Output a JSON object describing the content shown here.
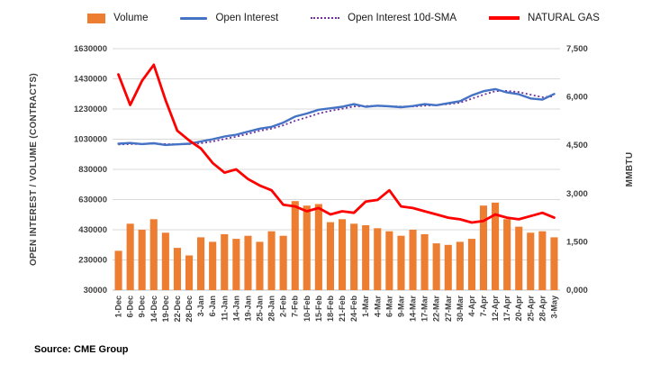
{
  "legend": [
    {
      "label": "Volume",
      "marker": "bar",
      "color": "#ED7D31"
    },
    {
      "label": "Open Interest",
      "marker": "line",
      "color": "#4472C4"
    },
    {
      "label": "Open Interest 10d-SMA",
      "marker": "dotted-line",
      "color": "#7030A0"
    },
    {
      "label": "NATURAL GAS",
      "marker": "thick-line",
      "color": "#FF0000"
    }
  ],
  "axes": {
    "left_title": "OPEN INTEREST / VOLUME (CONTRACTS)",
    "right_title": "MMBTU",
    "left_range": [
      30000,
      1630000
    ],
    "right_range": [
      0,
      7500
    ],
    "left_ticks": {
      "labels": [
        "1630000",
        "1430000",
        "1230000",
        "1030000",
        "830000",
        "630000",
        "430000",
        "230000",
        "30000"
      ],
      "values": [
        1630000,
        1430000,
        1230000,
        1030000,
        830000,
        630000,
        430000,
        230000,
        30000
      ]
    },
    "right_ticks": {
      "labels": [
        "7,500",
        "6,000",
        "4,500",
        "3,000",
        "1,500",
        "0,000"
      ],
      "values": [
        7500,
        6000,
        4500,
        3000,
        1500,
        0
      ]
    }
  },
  "source": "Source: CME Group",
  "chart_data": {
    "type": "combo",
    "title": "",
    "legend_position": "top",
    "grid": "horizontal",
    "xlabel": "",
    "ylabel_left": "OPEN INTEREST / VOLUME (CONTRACTS)",
    "ylabel_right": "MMBTU",
    "ylim_left": [
      30000,
      1630000
    ],
    "ylim_right": [
      0,
      7500
    ],
    "categories": [
      "1-Dec",
      "6-Dec",
      "9-Dec",
      "14-Dec",
      "19-Dec",
      "22-Dec",
      "28-Dec",
      "3-Jan",
      "6-Jan",
      "11-Jan",
      "14-Jan",
      "19-Jan",
      "25-Jan",
      "28-Jan",
      "2-Feb",
      "7-Feb",
      "10-Feb",
      "15-Feb",
      "18-Feb",
      "21-Feb",
      "24-Feb",
      "1-Mar",
      "4-Mar",
      "6-Mar",
      "9-Mar",
      "14-Mar",
      "17-Mar",
      "22-Mar",
      "27-Mar",
      "30-Mar",
      "4-Apr",
      "7-Apr",
      "12-Apr",
      "17-Apr",
      "20-Apr",
      "25-Apr",
      "28-Apr",
      "3-May"
    ],
    "series": [
      {
        "name": "Volume",
        "type": "bar",
        "axis": "left",
        "color": "#ED7D31",
        "values": [
          290000,
          470000,
          430000,
          500000,
          410000,
          310000,
          260000,
          380000,
          350000,
          400000,
          370000,
          390000,
          350000,
          420000,
          390000,
          620000,
          590000,
          600000,
          480000,
          500000,
          470000,
          460000,
          440000,
          420000,
          390000,
          430000,
          400000,
          340000,
          330000,
          350000,
          370000,
          590000,
          610000,
          500000,
          450000,
          410000,
          420000,
          380000
        ]
      },
      {
        "name": "Open Interest",
        "type": "line",
        "axis": "left",
        "color": "#4472C4",
        "values": [
          1000000,
          1005000,
          998000,
          1003000,
          992000,
          996000,
          1000000,
          1015000,
          1030000,
          1048000,
          1060000,
          1080000,
          1100000,
          1112000,
          1140000,
          1180000,
          1200000,
          1225000,
          1235000,
          1245000,
          1262000,
          1245000,
          1252000,
          1248000,
          1242000,
          1250000,
          1262000,
          1255000,
          1268000,
          1282000,
          1320000,
          1348000,
          1362000,
          1340000,
          1328000,
          1300000,
          1292000,
          1330000
        ]
      },
      {
        "name": "Open Interest 10d-SMA",
        "type": "line",
        "line_style": "dotted",
        "axis": "left",
        "color": "#7030A0",
        "values": [
          995000,
          998000,
          999000,
          1000000,
          998000,
          996000,
          997000,
          1003000,
          1015000,
          1032000,
          1047000,
          1065000,
          1086000,
          1100000,
          1122000,
          1152000,
          1175000,
          1200000,
          1218000,
          1232000,
          1247000,
          1250000,
          1250000,
          1248000,
          1246000,
          1247000,
          1252000,
          1256000,
          1262000,
          1272000,
          1298000,
          1325000,
          1348000,
          1350000,
          1342000,
          1325000,
          1308000,
          1315000
        ]
      },
      {
        "name": "NATURAL GAS",
        "type": "line",
        "axis": "right",
        "color": "#FF0000",
        "values": [
          6700,
          5750,
          6500,
          7000,
          5900,
          4950,
          4650,
          4400,
          3950,
          3650,
          3750,
          3450,
          3250,
          3100,
          2650,
          2600,
          2450,
          2550,
          2350,
          2450,
          2400,
          2750,
          2800,
          3100,
          2600,
          2550,
          2450,
          2350,
          2250,
          2200,
          2100,
          2150,
          2350,
          2250,
          2200,
          2300,
          2400,
          2250
        ]
      }
    ]
  }
}
